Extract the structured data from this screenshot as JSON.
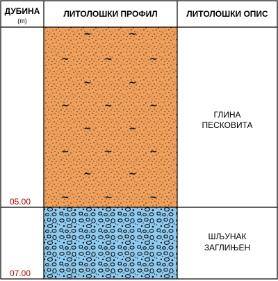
{
  "header": {
    "depth_label": "ДУБИНА",
    "depth_unit": "(m)",
    "profile_label": "ЛИТОЛОШКИ ПРОФИЛ",
    "description_label": "ЛИТОЛОШКИ ОПИС"
  },
  "layers": [
    {
      "line1": "ГЛИНА",
      "line2": "ПЕСКОВИТА",
      "bottom_depth": "05.00",
      "pattern": "sandy-clay",
      "color": "#f0a05a"
    },
    {
      "line1": "ШЉУНАК",
      "line2": "ЗАГЛИЊЕН",
      "bottom_depth": "07.00",
      "pattern": "gravel",
      "color": "#8ecbf0"
    }
  ],
  "colors": {
    "depth_text": "#c00000",
    "border": "#000000"
  }
}
